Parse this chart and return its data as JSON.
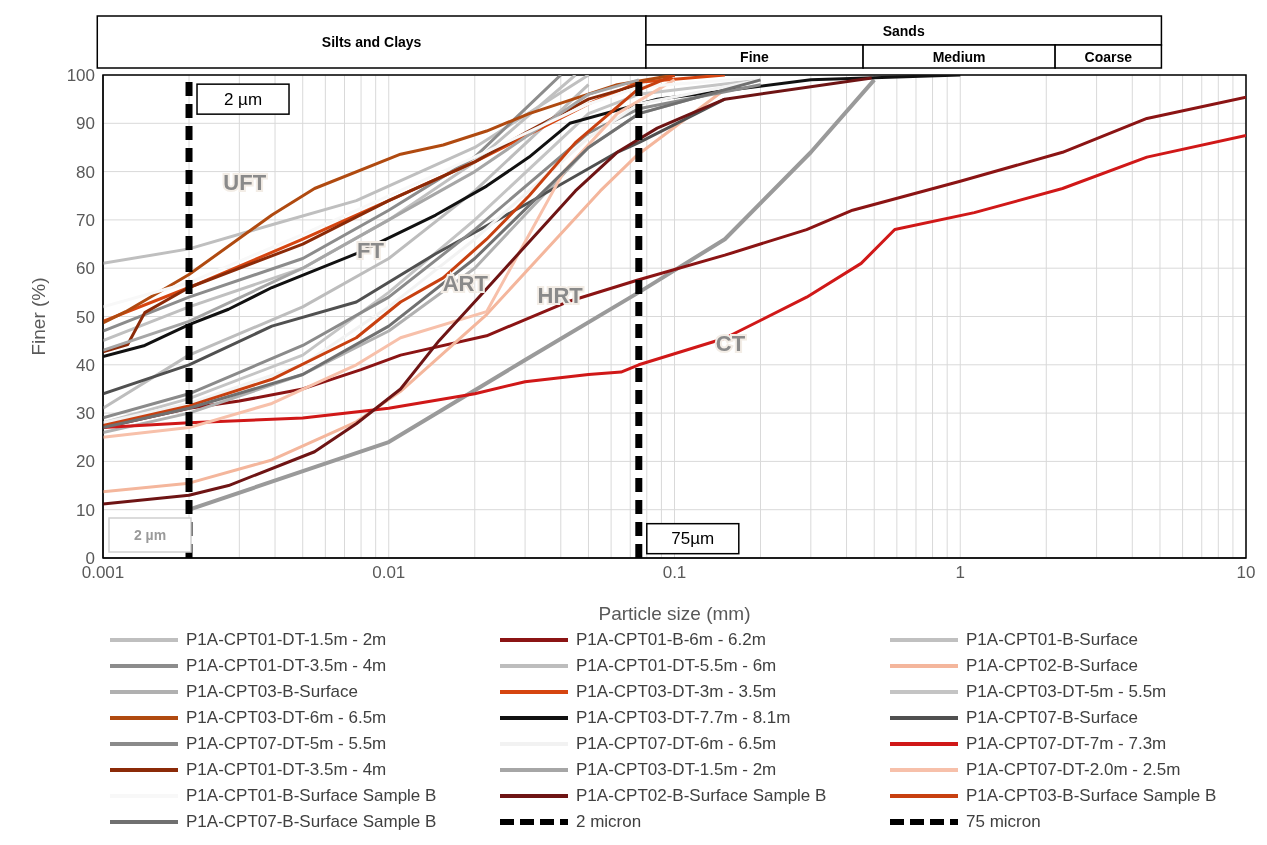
{
  "chart_data": {
    "type": "line",
    "xlabel": "Particle size (mm)",
    "ylabel": "Finer (%)",
    "log": "x",
    "xlim": [
      0.001,
      10
    ],
    "xticks": [
      0.001,
      0.01,
      0.1,
      1,
      10
    ],
    "ylim": [
      0,
      100
    ],
    "yticks": [
      0,
      10,
      20,
      30,
      40,
      50,
      60,
      70,
      80,
      90,
      100
    ],
    "grid": true,
    "legend": "bottom",
    "line_style": "solid",
    "marker": "none",
    "annotations": [
      "Silts and Clays",
      "Sands",
      "Fine",
      "Medium",
      "Coarse",
      "UFT",
      "FT",
      "ART",
      "HRT",
      "CT",
      "2 µm",
      {
        "text": "2 µm",
        "x": 0.002,
        "y": 95
      },
      {
        "text": "75µm",
        "x": 0.075,
        "y": 4
      }
    ],
    "ref_lines": [
      {
        "axis": "x",
        "value": 0.002,
        "label": "2 micron",
        "color": "#000000",
        "line_style": "dashed"
      },
      {
        "axis": "x",
        "value": 0.075,
        "label": "75 micron",
        "color": "#000000",
        "line_style": "dashed"
      }
    ],
    "series": [
      {
        "color": "#9a9a9a",
        "x": [
          0.002,
          0.01,
          0.03,
          0.075,
          0.15,
          0.3,
          0.5
        ],
        "values": [
          10,
          24,
          41,
          55,
          66,
          84,
          99
        ]
      },
      {
        "name": "P1A-CPT01-DT-1.5m - 2m",
        "color": "#bfbfbf",
        "x": [
          0.001,
          0.002,
          0.0039,
          0.0077,
          0.02,
          0.05
        ],
        "values": [
          61,
          64,
          69,
          74,
          85,
          100
        ]
      },
      {
        "name": "P1A-CPT01-B-6m - 6.2m",
        "color": "#8b1414",
        "x": [
          0.001,
          0.002,
          0.003,
          0.005,
          0.008,
          0.011,
          0.022,
          0.042,
          0.074,
          0.15,
          0.29,
          0.42,
          1,
          2.28,
          4.5,
          10
        ],
        "values": [
          27,
          31,
          32.5,
          35,
          39,
          42,
          46,
          53,
          57.5,
          62.7,
          68,
          72,
          78,
          84,
          91,
          95.4
        ]
      },
      {
        "name": "P1A-CPT01-B-Surface",
        "color": "#c0c0c0",
        "x": [
          0.001,
          0.002,
          0.005,
          0.01,
          0.02,
          0.045
        ],
        "values": [
          45,
          52,
          60,
          70,
          82,
          100
        ]
      },
      {
        "name": "P1A-CPT01-DT-3.5m - 4m",
        "color": "#8c8c8c",
        "x": [
          0.001,
          0.002,
          0.005,
          0.01,
          0.02,
          0.04
        ],
        "values": [
          47,
          54,
          62,
          72,
          83,
          100
        ]
      },
      {
        "name": "P1A-CPT01-DT-5.5m - 6m",
        "color": "#bdbdbd",
        "x": [
          0.001,
          0.002,
          0.005,
          0.01,
          0.02,
          0.05
        ],
        "values": [
          31,
          42,
          52,
          62,
          76,
          98
        ]
      },
      {
        "name": "P1A-CPT02-B-Surface",
        "color": "#f4b69c",
        "x": [
          0.001,
          0.002,
          0.0039,
          0.0077,
          0.011,
          0.022,
          0.055,
          0.074,
          0.15
        ],
        "values": [
          13.7,
          15.5,
          20.3,
          28.2,
          34.5,
          50.4,
          76,
          83.4,
          97
        ]
      },
      {
        "name": "P1A-CPT03-B-Surface",
        "color": "#b0b0b0",
        "x": [
          0.001,
          0.002,
          0.005,
          0.01,
          0.02,
          0.05,
          0.075,
          0.2
        ],
        "values": [
          26,
          30,
          38,
          47,
          60,
          85,
          92,
          99
        ]
      },
      {
        "name": "P1A-CPT03-DT-3m - 3.5m",
        "color": "#d64510",
        "x": [
          0.001,
          0.002,
          0.005,
          0.01,
          0.02,
          0.05,
          0.075,
          0.15
        ],
        "values": [
          49,
          56,
          66,
          74,
          82,
          94,
          98.5,
          100
        ]
      },
      {
        "name": "P1A-CPT03-DT-5m - 5.5m",
        "color": "#c4c4c4",
        "x": [
          0.001,
          0.002,
          0.005,
          0.01,
          0.02,
          0.05,
          0.075,
          0.2
        ],
        "values": [
          28,
          33,
          42,
          55,
          70,
          92,
          96,
          99
        ]
      },
      {
        "name": "P1A-CPT03-DT-6m - 6.5m",
        "color": "#b04a10",
        "x": [
          0.001,
          0.0012,
          0.002,
          0.0039,
          0.0055,
          0.011,
          0.0155,
          0.022,
          0.031,
          0.063,
          0.1
        ],
        "values": [
          48.7,
          51,
          58.7,
          71,
          76.5,
          83.6,
          85.5,
          88.4,
          92,
          98,
          100
        ]
      },
      {
        "name": "P1A-CPT03-DT-7.7m - 8.1m",
        "color": "#111111",
        "x": [
          0.001,
          0.0014,
          0.002,
          0.00275,
          0.0039,
          0.0077,
          0.0146,
          0.022,
          0.031,
          0.043,
          0.087,
          0.3,
          1
        ],
        "values": [
          41.7,
          44,
          48.3,
          51.5,
          56,
          63,
          71,
          77,
          83,
          90,
          95,
          99,
          100
        ]
      },
      {
        "name": "P1A-CPT07-B-Surface",
        "color": "#505050",
        "x": [
          0.001,
          0.002,
          0.0039,
          0.0077,
          0.0146,
          0.031,
          0.063,
          0.075,
          0.15
        ],
        "values": [
          34,
          40,
          48,
          53,
          63,
          73.6,
          84,
          86,
          95
        ]
      },
      {
        "name": "P1A-CPT07-DT-5m - 5.5m",
        "color": "#8a8a8a",
        "x": [
          0.001,
          0.002,
          0.005,
          0.01,
          0.02,
          0.05,
          0.075,
          0.2
        ],
        "values": [
          29,
          34,
          44,
          54,
          68,
          88,
          93,
          98
        ]
      },
      {
        "name": "P1A-CPT07-DT-6m - 6.5m",
        "color": "#f2f2f2",
        "x": [
          0.001,
          0.002,
          0.005,
          0.01,
          0.02,
          0.05,
          0.075,
          0.2
        ],
        "values": [
          28,
          32,
          40,
          52,
          66,
          87,
          94,
          99
        ]
      },
      {
        "name": "P1A-CPT07-DT-7m - 7.3m",
        "color": "#d01818",
        "x": [
          0.001,
          0.002,
          0.005,
          0.01,
          0.02,
          0.03,
          0.05,
          0.065,
          0.075,
          0.15,
          0.29,
          0.45,
          0.59,
          1.12,
          2.28,
          4.5,
          10
        ],
        "values": [
          27,
          28,
          29,
          31,
          34,
          36.5,
          38,
          38.5,
          40,
          45.5,
          54,
          61,
          68,
          71.5,
          76.5,
          83,
          87.5
        ]
      },
      {
        "name": "P1A-CPT01-DT-3.5m - 4m",
        "color": "#8b2a08",
        "x": [
          0.001,
          0.00122,
          0.0014,
          0.002,
          0.005,
          0.01,
          0.02,
          0.03,
          0.05,
          0.075
        ],
        "values": [
          42.7,
          44.2,
          50.8,
          56,
          65,
          74,
          82,
          88,
          95,
          98
        ]
      },
      {
        "name": "P1A-CPT03-DT-1.5m - 2m",
        "color": "#a6a6a6",
        "x": [
          0.001,
          0.002,
          0.005,
          0.01,
          0.02,
          0.05,
          0.075
        ],
        "values": [
          43,
          49,
          60,
          70,
          80,
          96,
          99
        ]
      },
      {
        "name": "P1A-CPT07-DT-2.0m - 2.5m",
        "color": "#f7c0aa",
        "x": [
          0.001,
          0.002,
          0.0039,
          0.0077,
          0.011,
          0.022,
          0.041,
          0.063,
          0.1
        ],
        "values": [
          25,
          27,
          32,
          40,
          45.6,
          51,
          80,
          92,
          99
        ]
      },
      {
        "name": "P1A-CPT01-B-Surface Sample B",
        "color": "#f8f8f8",
        "x": [
          0.001,
          0.002,
          0.005,
          0.01,
          0.02,
          0.05,
          0.075,
          0.2
        ],
        "values": [
          52,
          57,
          67,
          75,
          83,
          94,
          97.5,
          99.5
        ]
      },
      {
        "name": "P1A-CPT02-B-Surface Sample B",
        "color": "#6e1414",
        "x": [
          0.001,
          0.002,
          0.00275,
          0.0055,
          0.0077,
          0.011,
          0.015,
          0.023,
          0.045,
          0.063,
          0.087,
          0.15,
          0.49
        ],
        "values": [
          11.2,
          13,
          15,
          22,
          27.8,
          35,
          45,
          57,
          76,
          84,
          89,
          95,
          99.4
        ]
      },
      {
        "name": "P1A-CPT03-B-Surface Sample B",
        "color": "#c84010",
        "x": [
          0.001,
          0.002,
          0.0039,
          0.0077,
          0.011,
          0.0155,
          0.022,
          0.031,
          0.045,
          0.073,
          0.1
        ],
        "values": [
          27.4,
          31.5,
          37,
          45.6,
          53,
          58,
          66,
          75,
          86,
          96.6,
          100
        ]
      },
      {
        "name": "P1A-CPT07-B-Surface Sample B",
        "color": "#707070",
        "x": [
          0.001,
          0.002,
          0.005,
          0.01,
          0.02,
          0.05,
          0.075,
          0.2
        ],
        "values": [
          27,
          31,
          38,
          48,
          62,
          85,
          92,
          99
        ]
      }
    ]
  }
}
